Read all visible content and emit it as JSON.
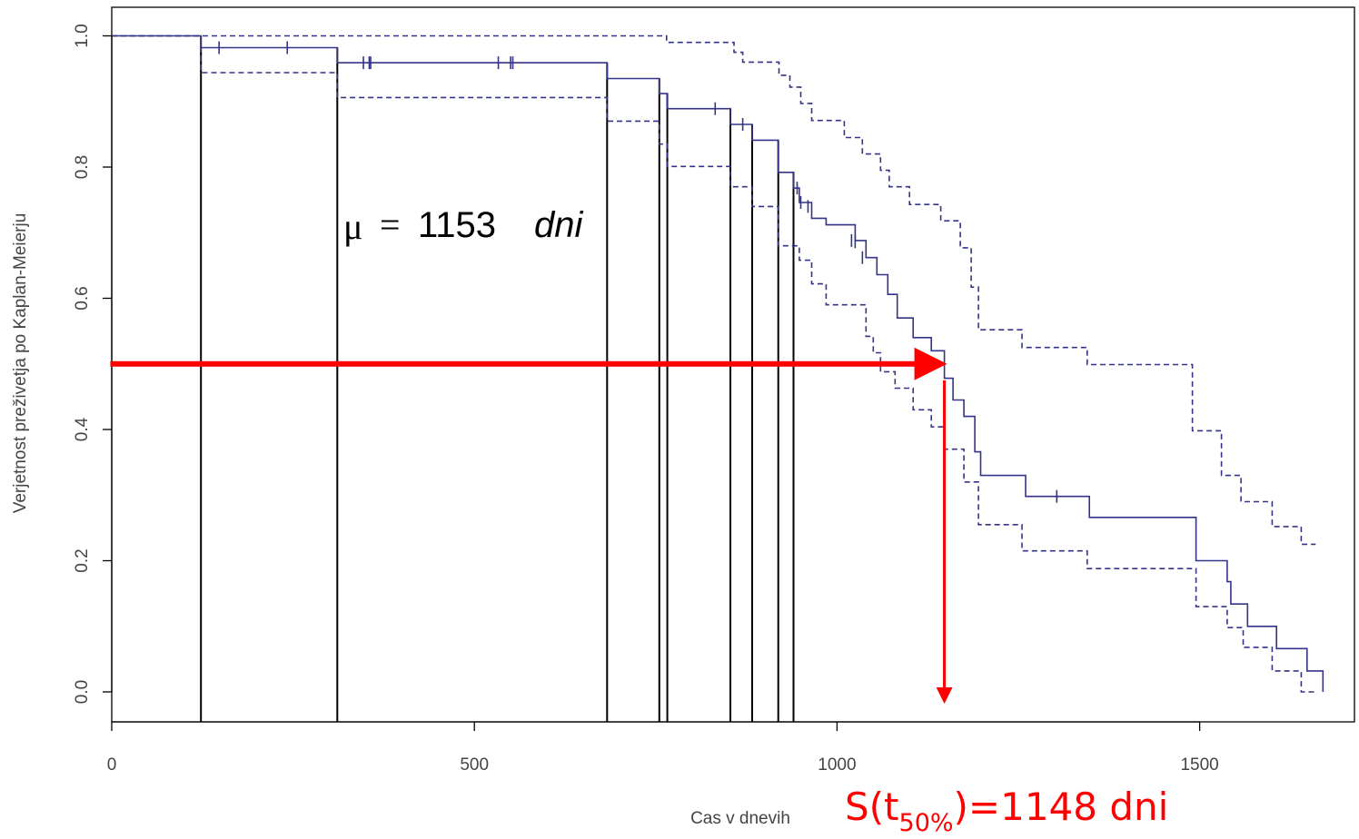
{
  "chart_data": {
    "type": "line",
    "title": "",
    "xlabel": "Cas v dnevih",
    "ylabel": "Verjetnost preživetja po Kaplan-Meierju",
    "xlim": [
      0,
      1700
    ],
    "ylim": [
      0,
      1.0
    ],
    "x_ticks": [
      0,
      500,
      1000,
      1500
    ],
    "y_ticks": [
      "0.0",
      "0.2",
      "0.4",
      "0.6",
      "0.8",
      "1.0"
    ],
    "x_tick_values": [
      0,
      500,
      1000,
      1500
    ],
    "y_tick_values": [
      0,
      0.2,
      0.4,
      0.6,
      0.8,
      1.0
    ],
    "grid": false,
    "colors": {
      "km": "#33338a",
      "ci": "#33338a",
      "reference": "#000000",
      "highlight": "#ff0000"
    },
    "series": [
      {
        "role": "estimate",
        "style": "solid",
        "points": [
          [
            0,
            1.0
          ],
          [
            123,
            1.0
          ],
          [
            123,
            0.982
          ],
          [
            311,
            0.982
          ],
          [
            311,
            0.959
          ],
          [
            683,
            0.959
          ],
          [
            683,
            0.935
          ],
          [
            755,
            0.935
          ],
          [
            755,
            0.912
          ],
          [
            766,
            0.912
          ],
          [
            766,
            0.889
          ],
          [
            853,
            0.889
          ],
          [
            853,
            0.865
          ],
          [
            883,
            0.865
          ],
          [
            883,
            0.841
          ],
          [
            919,
            0.841
          ],
          [
            919,
            0.792
          ],
          [
            940,
            0.792
          ],
          [
            940,
            0.768
          ],
          [
            948,
            0.768
          ],
          [
            948,
            0.746
          ],
          [
            965,
            0.746
          ],
          [
            965,
            0.722
          ],
          [
            985,
            0.722
          ],
          [
            985,
            0.712
          ],
          [
            1025,
            0.712
          ],
          [
            1025,
            0.688
          ],
          [
            1040,
            0.688
          ],
          [
            1040,
            0.662
          ],
          [
            1055,
            0.662
          ],
          [
            1055,
            0.636
          ],
          [
            1070,
            0.636
          ],
          [
            1070,
            0.606
          ],
          [
            1083,
            0.606
          ],
          [
            1083,
            0.57
          ],
          [
            1105,
            0.57
          ],
          [
            1105,
            0.54
          ],
          [
            1130,
            0.54
          ],
          [
            1130,
            0.52
          ],
          [
            1148,
            0.52
          ],
          [
            1148,
            0.478
          ],
          [
            1160,
            0.478
          ],
          [
            1160,
            0.445
          ],
          [
            1175,
            0.445
          ],
          [
            1175,
            0.42
          ],
          [
            1190,
            0.42
          ],
          [
            1190,
            0.366
          ],
          [
            1198,
            0.366
          ],
          [
            1198,
            0.33
          ],
          [
            1260,
            0.33
          ],
          [
            1260,
            0.298
          ],
          [
            1348,
            0.298
          ],
          [
            1348,
            0.266
          ],
          [
            1495,
            0.266
          ],
          [
            1495,
            0.2
          ],
          [
            1538,
            0.2
          ],
          [
            1538,
            0.168
          ],
          [
            1543,
            0.168
          ],
          [
            1543,
            0.134
          ],
          [
            1566,
            0.134
          ],
          [
            1566,
            0.1
          ],
          [
            1606,
            0.1
          ],
          [
            1606,
            0.066
          ],
          [
            1648,
            0.066
          ],
          [
            1648,
            0.032
          ],
          [
            1670,
            0.032
          ],
          [
            1670,
            0.0
          ]
        ]
      },
      {
        "role": "upper",
        "style": "dashed",
        "points": [
          [
            0,
            1.0
          ],
          [
            765,
            1.0
          ],
          [
            765,
            0.99
          ],
          [
            858,
            0.99
          ],
          [
            858,
            0.975
          ],
          [
            870,
            0.975
          ],
          [
            870,
            0.96
          ],
          [
            920,
            0.96
          ],
          [
            920,
            0.94
          ],
          [
            935,
            0.94
          ],
          [
            935,
            0.922
          ],
          [
            950,
            0.922
          ],
          [
            950,
            0.897
          ],
          [
            965,
            0.897
          ],
          [
            965,
            0.871
          ],
          [
            1010,
            0.871
          ],
          [
            1010,
            0.845
          ],
          [
            1035,
            0.845
          ],
          [
            1035,
            0.82
          ],
          [
            1060,
            0.82
          ],
          [
            1060,
            0.795
          ],
          [
            1072,
            0.795
          ],
          [
            1072,
            0.77
          ],
          [
            1100,
            0.77
          ],
          [
            1100,
            0.743
          ],
          [
            1143,
            0.743
          ],
          [
            1143,
            0.718
          ],
          [
            1170,
            0.718
          ],
          [
            1170,
            0.677
          ],
          [
            1185,
            0.677
          ],
          [
            1185,
            0.617
          ],
          [
            1195,
            0.617
          ],
          [
            1195,
            0.552
          ],
          [
            1255,
            0.552
          ],
          [
            1255,
            0.525
          ],
          [
            1345,
            0.525
          ],
          [
            1345,
            0.499
          ],
          [
            1490,
            0.499
          ],
          [
            1490,
            0.398
          ],
          [
            1530,
            0.398
          ],
          [
            1530,
            0.33
          ],
          [
            1557,
            0.33
          ],
          [
            1557,
            0.29
          ],
          [
            1600,
            0.29
          ],
          [
            1600,
            0.252
          ],
          [
            1640,
            0.252
          ],
          [
            1640,
            0.225
          ],
          [
            1660,
            0.225
          ]
        ]
      },
      {
        "role": "lower",
        "style": "dashed",
        "points": [
          [
            0,
            1.0
          ],
          [
            123,
            1.0
          ],
          [
            123,
            0.944
          ],
          [
            311,
            0.944
          ],
          [
            311,
            0.906
          ],
          [
            683,
            0.906
          ],
          [
            683,
            0.87
          ],
          [
            755,
            0.87
          ],
          [
            755,
            0.835
          ],
          [
            766,
            0.835
          ],
          [
            766,
            0.801
          ],
          [
            853,
            0.801
          ],
          [
            853,
            0.77
          ],
          [
            883,
            0.77
          ],
          [
            883,
            0.74
          ],
          [
            919,
            0.74
          ],
          [
            919,
            0.68
          ],
          [
            948,
            0.68
          ],
          [
            948,
            0.658
          ],
          [
            965,
            0.658
          ],
          [
            965,
            0.622
          ],
          [
            985,
            0.622
          ],
          [
            985,
            0.59
          ],
          [
            1040,
            0.59
          ],
          [
            1040,
            0.542
          ],
          [
            1050,
            0.542
          ],
          [
            1050,
            0.517
          ],
          [
            1060,
            0.517
          ],
          [
            1060,
            0.488
          ],
          [
            1080,
            0.488
          ],
          [
            1080,
            0.463
          ],
          [
            1105,
            0.463
          ],
          [
            1105,
            0.43
          ],
          [
            1130,
            0.43
          ],
          [
            1130,
            0.404
          ],
          [
            1148,
            0.404
          ],
          [
            1148,
            0.37
          ],
          [
            1175,
            0.37
          ],
          [
            1175,
            0.32
          ],
          [
            1195,
            0.32
          ],
          [
            1195,
            0.255
          ],
          [
            1255,
            0.255
          ],
          [
            1255,
            0.215
          ],
          [
            1345,
            0.215
          ],
          [
            1345,
            0.188
          ],
          [
            1495,
            0.188
          ],
          [
            1495,
            0.13
          ],
          [
            1538,
            0.13
          ],
          [
            1538,
            0.098
          ],
          [
            1560,
            0.098
          ],
          [
            1560,
            0.068
          ],
          [
            1600,
            0.068
          ],
          [
            1600,
            0.032
          ],
          [
            1640,
            0.032
          ],
          [
            1640,
            0.0
          ],
          [
            1660,
            0.0
          ]
        ]
      }
    ],
    "censored": [
      [
        148,
        0.982
      ],
      [
        242,
        0.982
      ],
      [
        347,
        0.959
      ],
      [
        355,
        0.959
      ],
      [
        357,
        0.959
      ],
      [
        533,
        0.959
      ],
      [
        550,
        0.959
      ],
      [
        553,
        0.959
      ],
      [
        832,
        0.889
      ],
      [
        870,
        0.865
      ],
      [
        945,
        0.768
      ],
      [
        950,
        0.746
      ],
      [
        960,
        0.74
      ],
      [
        1020,
        0.688
      ],
      [
        1025,
        0.686
      ],
      [
        1035,
        0.662
      ],
      [
        1303,
        0.298
      ]
    ],
    "reference_lines_x": [
      123,
      311,
      683,
      755,
      766,
      853,
      883,
      919,
      940
    ],
    "median_arrow": {
      "y": 0.5,
      "x_end": 1148,
      "x_start": -2
    },
    "median_drop": {
      "x": 1148,
      "y_top": 0.475,
      "y_bottom": -0.02
    },
    "annotations": {
      "mean_symbol": "μ",
      "mean_eq": "=",
      "mean_value": "1153",
      "mean_unit": "dni",
      "median_prefix": "S(t",
      "median_sub": "50%",
      "median_suffix": ")=1148 dni"
    }
  }
}
